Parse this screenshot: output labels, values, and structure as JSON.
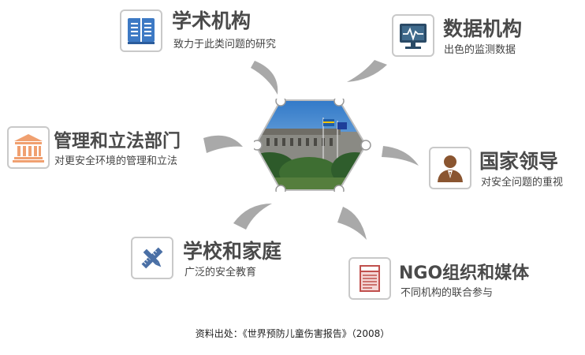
{
  "nodes": [
    {
      "key": "academic",
      "title": "学术机构",
      "subtitle": "致力于此类问题的研究",
      "icon": "book-icon",
      "color": "#3d79c4"
    },
    {
      "key": "data",
      "title": "数据机构",
      "subtitle": "出色的监测数据",
      "icon": "monitor-icon",
      "color": "#2a4a66"
    },
    {
      "key": "govt",
      "title": "管理和立法部门",
      "subtitle": "对更安全环境的管理和立法",
      "icon": "building-icon",
      "color": "#f0a070"
    },
    {
      "key": "leaders",
      "title": "国家领导",
      "subtitle": "对安全问题的重视",
      "icon": "person-icon",
      "color": "#8a5530"
    },
    {
      "key": "school",
      "title": "学校和家庭",
      "subtitle": "广泛的安全教育",
      "icon": "pencil-ruler-icon",
      "color": "#4a6fa5"
    },
    {
      "key": "ngo",
      "title": "NGO组织和媒体",
      "subtitle": "不同机构的联合参与",
      "icon": "newspaper-icon",
      "color": "#c0504d"
    }
  ],
  "footer": {
    "source": "资料出处：《世界预防儿童伤害报告》（2008）"
  }
}
